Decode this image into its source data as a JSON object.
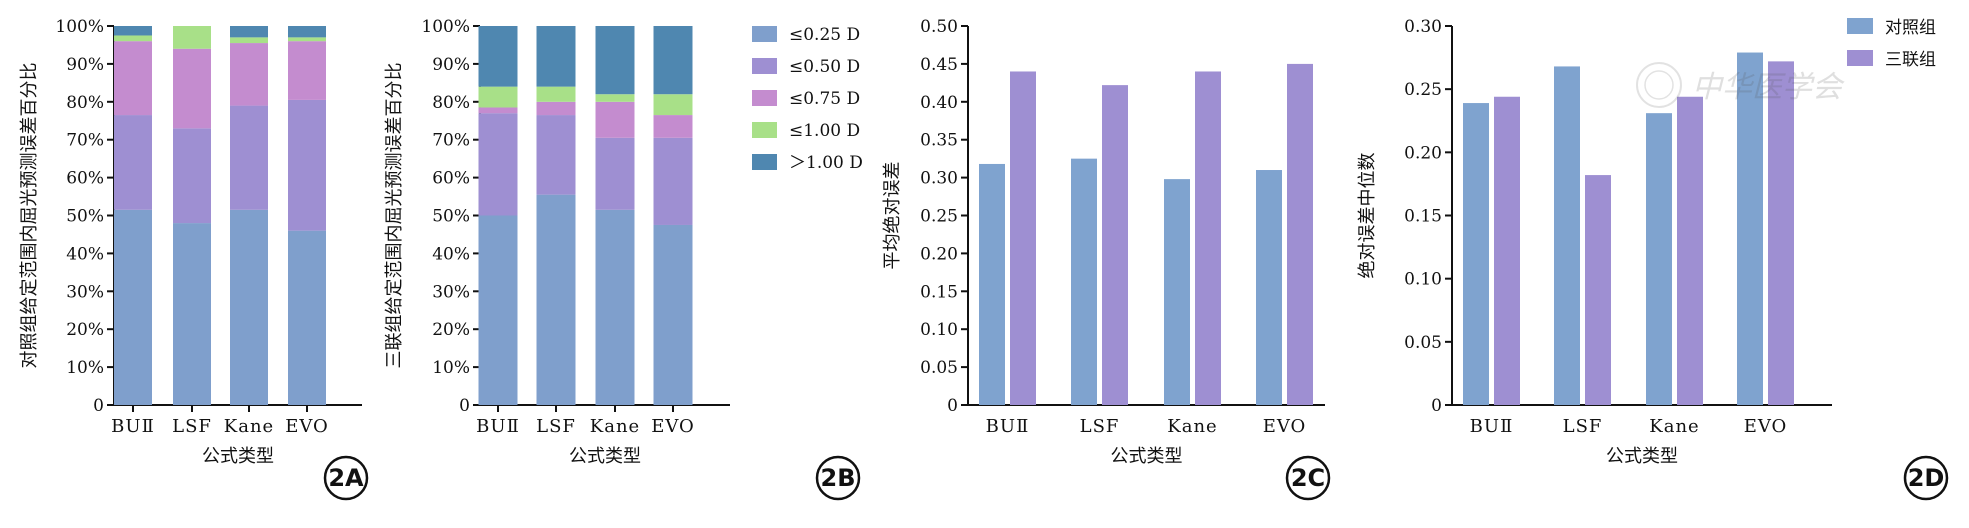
{
  "colors": {
    "le025": "#7f9fcc",
    "le050": "#9e8fd2",
    "le075": "#c48ccf",
    "le100": "#a8e088",
    "gt100": "#4f87b0",
    "control": "#7fa3cf",
    "triple": "#9e8fd2"
  },
  "legend_ab": [
    "≤0.25 D",
    "≤0.50 D",
    "≤0.75 D",
    "≤1.00 D",
    "＞1.00 D"
  ],
  "legend_cd": [
    "对照组",
    "三联组"
  ],
  "watermark": "中华医学会",
  "chart_data": [
    {
      "id": "2A",
      "type": "bar",
      "stacked": true,
      "badge": "2A",
      "xlabel": "公式类型",
      "ylabel": "对照组给定范围内屈光预测误差百分比",
      "ylim": [
        0,
        100
      ],
      "yticks": [
        "0",
        "10%",
        "20%",
        "30%",
        "40%",
        "50%",
        "60%",
        "70%",
        "80%",
        "90%",
        "100%"
      ],
      "categories": [
        "BUⅡ",
        "LSF",
        "Kane",
        "EVO"
      ],
      "series": [
        {
          "name": "≤0.25 D",
          "values": [
            51.5,
            48,
            51.5,
            46
          ]
        },
        {
          "name": "≤0.50 D",
          "values": [
            25,
            25,
            27.5,
            34.5
          ]
        },
        {
          "name": "≤0.75 D",
          "values": [
            19.5,
            21,
            16.5,
            15.5
          ]
        },
        {
          "name": "≤1.00 D",
          "values": [
            1.5,
            6,
            1.5,
            1
          ]
        },
        {
          "name": "＞1.00 D",
          "values": [
            2.5,
            0,
            3,
            3
          ]
        }
      ]
    },
    {
      "id": "2B",
      "type": "bar",
      "stacked": true,
      "badge": "2B",
      "xlabel": "公式类型",
      "ylabel": "三联组给定范围内屈光预测误差百分比",
      "ylim": [
        0,
        100
      ],
      "yticks": [
        "0",
        "10%",
        "20%",
        "30%",
        "40%",
        "50%",
        "60%",
        "70%",
        "80%",
        "90%",
        "100%"
      ],
      "categories": [
        "BUⅡ",
        "LSF",
        "Kane",
        "EVO"
      ],
      "series": [
        {
          "name": "≤0.25 D",
          "values": [
            50,
            55.5,
            51.5,
            47.5
          ]
        },
        {
          "name": "≤0.50 D",
          "values": [
            27,
            21,
            19,
            23
          ]
        },
        {
          "name": "≤0.75 D",
          "values": [
            1.5,
            3.5,
            9.5,
            6
          ]
        },
        {
          "name": "≤1.00 D",
          "values": [
            5.5,
            4,
            2,
            5.5
          ]
        },
        {
          "name": "＞1.00 D",
          "values": [
            16,
            16,
            18,
            18
          ]
        }
      ]
    },
    {
      "id": "2C",
      "type": "bar",
      "badge": "2C",
      "xlabel": "公式类型",
      "ylabel": "平均绝对误差",
      "ylim": [
        0,
        0.5
      ],
      "yticks": [
        "0",
        "0.05",
        "0.10",
        "0.15",
        "0.20",
        "0.25",
        "0.30",
        "0.35",
        "0.40",
        "0.45",
        "0.50"
      ],
      "categories": [
        "BUⅡ",
        "LSF",
        "Kane",
        "EVO"
      ],
      "series": [
        {
          "name": "对照组",
          "values": [
            0.318,
            0.325,
            0.298,
            0.31
          ]
        },
        {
          "name": "三联组",
          "values": [
            0.44,
            0.422,
            0.44,
            0.45
          ]
        }
      ]
    },
    {
      "id": "2D",
      "type": "bar",
      "badge": "2D",
      "xlabel": "公式类型",
      "ylabel": "绝对误差中位数",
      "ylim": [
        0,
        0.3
      ],
      "yticks": [
        "0",
        "0.05",
        "0.10",
        "0.15",
        "0.20",
        "0.25",
        "0.30"
      ],
      "categories": [
        "BUⅡ",
        "LSF",
        "Kane",
        "EVO"
      ],
      "series": [
        {
          "name": "对照组",
          "values": [
            0.239,
            0.268,
            0.231,
            0.279
          ]
        },
        {
          "name": "三联组",
          "values": [
            0.244,
            0.182,
            0.244,
            0.272
          ]
        }
      ]
    }
  ]
}
